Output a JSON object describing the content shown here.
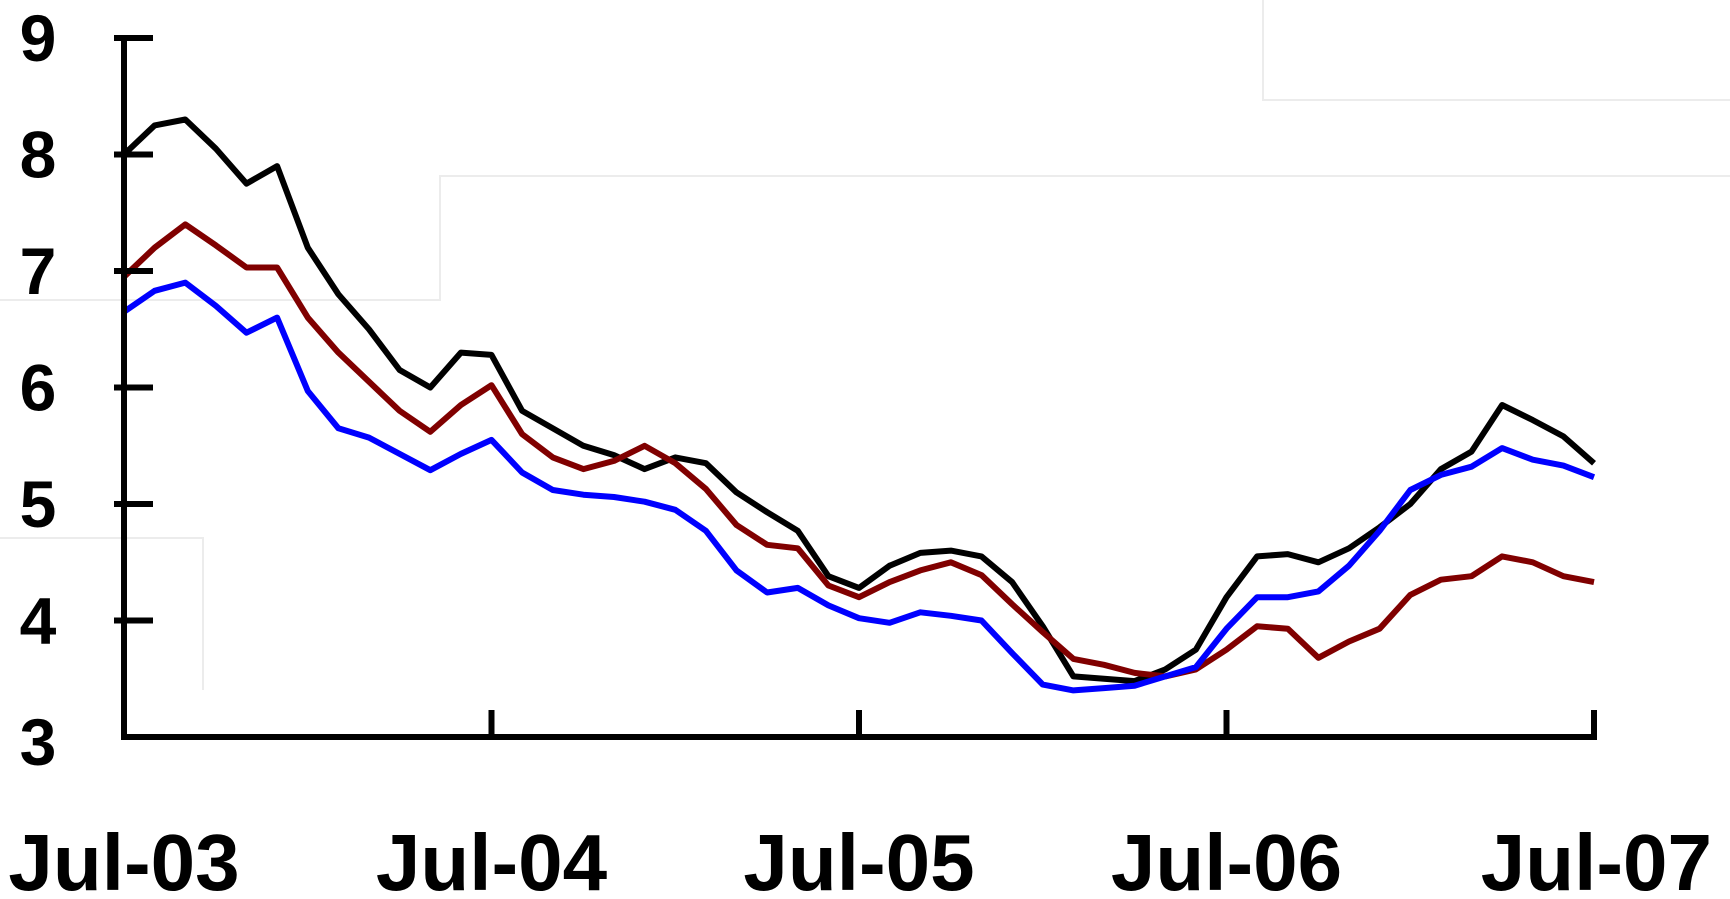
{
  "chart_data": {
    "type": "line",
    "x": [
      "Jul-03",
      "Aug-03",
      "Sep-03",
      "Oct-03",
      "Nov-03",
      "Dec-03",
      "Jan-04",
      "Feb-04",
      "Mar-04",
      "Apr-04",
      "May-04",
      "Jun-04",
      "Jul-04",
      "Aug-04",
      "Sep-04",
      "Oct-04",
      "Nov-04",
      "Dec-04",
      "Jan-05",
      "Feb-05",
      "Mar-05",
      "Apr-05",
      "May-05",
      "Jun-05",
      "Jul-05",
      "Aug-05",
      "Sep-05",
      "Oct-05",
      "Nov-05",
      "Dec-05",
      "Jan-06",
      "Feb-06",
      "Mar-06",
      "Apr-06",
      "May-06",
      "Jun-06",
      "Jul-06",
      "Aug-06",
      "Sep-06",
      "Oct-06",
      "Nov-06",
      "Dec-06",
      "Jan-07",
      "Feb-07",
      "Mar-07",
      "Apr-07",
      "May-07",
      "Jun-07",
      "Jul-07"
    ],
    "series": [
      {
        "color": "#000000",
        "values": [
          8.0,
          8.25,
          8.3,
          8.05,
          7.75,
          7.9,
          7.2,
          6.8,
          6.5,
          6.15,
          6.0,
          6.3,
          6.28,
          5.8,
          5.65,
          5.5,
          5.42,
          5.3,
          5.4,
          5.35,
          5.1,
          4.93,
          4.77,
          4.38,
          4.28,
          4.47,
          4.58,
          4.6,
          4.55,
          4.33,
          3.95,
          3.52,
          3.5,
          3.48,
          3.58,
          3.75,
          4.2,
          4.55,
          4.57,
          4.5,
          4.62,
          4.8,
          5.0,
          5.3,
          5.45,
          5.85,
          5.72,
          5.58,
          5.35
        ]
      },
      {
        "color": "#800000",
        "values": [
          6.95,
          7.2,
          7.4,
          7.22,
          7.03,
          7.03,
          6.6,
          6.3,
          6.05,
          5.8,
          5.62,
          5.85,
          6.02,
          5.6,
          5.4,
          5.3,
          5.37,
          5.5,
          5.35,
          5.13,
          4.82,
          4.65,
          4.62,
          4.3,
          4.2,
          4.33,
          4.43,
          4.5,
          4.39,
          4.14,
          3.9,
          3.67,
          3.62,
          3.55,
          3.52,
          3.58,
          3.75,
          3.95,
          3.93,
          3.68,
          3.82,
          3.93,
          4.22,
          4.35,
          4.38,
          4.55,
          4.5,
          4.38,
          4.33
        ]
      },
      {
        "color": "#0000ff",
        "values": [
          6.65,
          6.83,
          6.9,
          6.7,
          6.47,
          6.6,
          5.97,
          5.65,
          5.57,
          5.43,
          5.29,
          5.43,
          5.55,
          5.27,
          5.12,
          5.08,
          5.06,
          5.02,
          4.95,
          4.77,
          4.43,
          4.24,
          4.28,
          4.13,
          4.02,
          3.98,
          4.07,
          4.04,
          4.0,
          3.72,
          3.45,
          3.4,
          3.42,
          3.44,
          3.52,
          3.6,
          3.93,
          4.2,
          4.2,
          4.25,
          4.47,
          4.77,
          5.12,
          5.25,
          5.32,
          5.48,
          5.38,
          5.33,
          5.23
        ]
      }
    ],
    "ylim": [
      3,
      9
    ],
    "yticks": [
      "3",
      "4",
      "5",
      "6",
      "7",
      "8",
      "9"
    ],
    "xtick_labels": [
      "Jul-03",
      "Jul-04",
      "Jul-05",
      "Jul-06",
      "Jul-07"
    ],
    "grid": false,
    "title": "",
    "xlabel": "",
    "ylabel": ""
  }
}
